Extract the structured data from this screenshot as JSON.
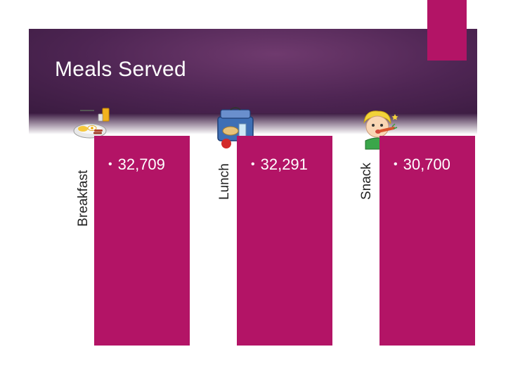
{
  "title": "Meals Served",
  "colors": {
    "banner": "#4e2553",
    "card": "#b31466",
    "text": "#ffffff"
  },
  "meals": [
    {
      "label": "Breakfast",
      "value": "32,709",
      "icon": "breakfast-plate-icon"
    },
    {
      "label": "Lunch",
      "value": "32,291",
      "icon": "lunch-box-icon"
    },
    {
      "label": "Snack",
      "value": "30,700",
      "icon": "child-eating-icon"
    }
  ],
  "bullet": "•"
}
